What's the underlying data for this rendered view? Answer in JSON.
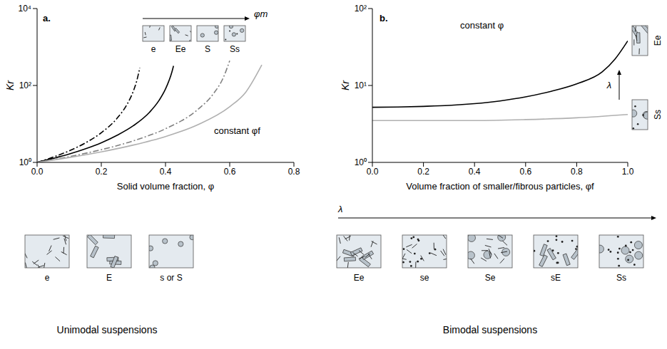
{
  "chart_data": [
    {
      "type": "line",
      "panel_label": "a.",
      "x_label": "Solid volume fraction, φ",
      "y_label": "Kr",
      "log": "y",
      "xlim": [
        0,
        0.8
      ],
      "xticks": [
        {
          "value": 0,
          "label": "0.0"
        },
        0.2,
        0.4,
        0.6,
        0.8
      ],
      "ylim": [
        1,
        10000
      ],
      "yticks": [
        {
          "value": 1,
          "label": "10⁰"
        },
        {
          "value": 100,
          "label": "10²"
        },
        {
          "value": 10000,
          "label": "10⁴"
        }
      ],
      "arrow_label": "φm",
      "annotation": "constant φf",
      "series": [
        {
          "name": "e",
          "color": "#000000",
          "line_style": "dashdot",
          "x": [
            0,
            0.05,
            0.1,
            0.15,
            0.2,
            0.25,
            0.28,
            0.3,
            0.31,
            0.32
          ],
          "values": [
            1,
            1.37,
            2.0,
            3.2,
            5.9,
            14.3,
            32,
            72,
            128,
            289
          ]
        },
        {
          "name": "Ee",
          "color": "#000000",
          "line_style": "solid",
          "x": [
            0,
            0.05,
            0.1,
            0.15,
            0.2,
            0.25,
            0.3,
            0.35,
            0.38,
            0.4,
            0.42,
            0.425
          ],
          "values": [
            1,
            1.27,
            1.65,
            2.25,
            3.24,
            5.1,
            9,
            20,
            41,
            81,
            225,
            324
          ]
        },
        {
          "name": "S",
          "color": "#808080",
          "line_style": "dashdot",
          "x": [
            0,
            0.1,
            0.2,
            0.3,
            0.4,
            0.5,
            0.55,
            0.58,
            0.6
          ],
          "values": [
            1,
            1.41,
            2.14,
            3.64,
            7.5,
            23.5,
            62,
            159,
            441
          ]
        },
        {
          "name": "Ss",
          "color": "#b0b0b0",
          "line_style": "solid",
          "x": [
            0,
            0.1,
            0.2,
            0.3,
            0.4,
            0.5,
            0.6,
            0.65,
            0.7
          ],
          "values": [
            1,
            1.34,
            1.88,
            2.83,
            4.7,
            9.5,
            28,
            67,
            342
          ]
        }
      ]
    },
    {
      "type": "line",
      "panel_label": "b.",
      "x_label": "Volume fraction of smaller/fibrous particles, φf",
      "y_label": "Kr",
      "log": "y",
      "xlim": [
        0,
        1
      ],
      "xticks": [
        {
          "value": 0,
          "label": "0.0"
        },
        0.2,
        0.4,
        0.6,
        0.8,
        {
          "value": 1,
          "label": "1.0"
        }
      ],
      "ylim": [
        1,
        100
      ],
      "yticks": [
        {
          "value": 1,
          "label": "10⁰"
        },
        {
          "value": 10,
          "label": "10¹"
        },
        {
          "value": 100,
          "label": "10²"
        }
      ],
      "arrow_label": "λ",
      "annotation": "constant φ",
      "series": [
        {
          "name": "Ee",
          "color": "#000000",
          "line_style": "solid",
          "x": [
            0,
            0.1,
            0.2,
            0.3,
            0.4,
            0.5,
            0.6,
            0.7,
            0.8,
            0.9,
            0.95,
            1.0
          ],
          "values": [
            5.2,
            5.25,
            5.35,
            5.5,
            5.8,
            6.3,
            7.1,
            8.4,
            10.5,
            15,
            22,
            38
          ]
        },
        {
          "name": "Ss",
          "color": "#b0b0b0",
          "line_style": "solid",
          "x": [
            0,
            0.2,
            0.4,
            0.6,
            0.8,
            1.0
          ],
          "values": [
            3.5,
            3.5,
            3.5,
            3.6,
            3.8,
            4.2
          ]
        }
      ]
    }
  ],
  "diagram": {
    "unimodal": {
      "title": "Unimodal suspensions",
      "boxes": [
        "e",
        "E",
        "s or S"
      ]
    },
    "bimodal": {
      "title": "Bimodal suspensions",
      "arrow_label": "λ",
      "boxes": [
        "Ee",
        "se",
        "Se",
        "sE",
        "Ss"
      ]
    }
  }
}
